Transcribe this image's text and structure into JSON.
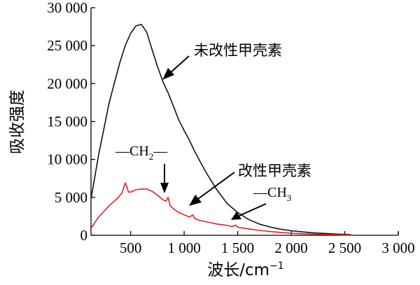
{
  "chart_data": {
    "type": "line",
    "xlabel": "波长/cm",
    "xlabel_sup": "−1",
    "ylabel": "吸收强度",
    "xlim": [
      130,
      3000
    ],
    "ylim": [
      0,
      30000
    ],
    "x_ticks": [
      500,
      1000,
      1500,
      2000,
      2500,
      3000
    ],
    "x_tick_labels": [
      "500",
      "1 000",
      "1 500",
      "2 000",
      "2 500",
      "3 000"
    ],
    "y_ticks": [
      0,
      5000,
      10000,
      15000,
      20000,
      25000,
      30000
    ],
    "y_tick_labels": [
      "0",
      "5 000",
      "10 000",
      "15 000",
      "20 000",
      "25 000",
      "30 000"
    ],
    "grid": false,
    "series": [
      {
        "name": "未改性甲壳素",
        "color": "#111111",
        "x": [
          130,
          200,
          300,
          400,
          450,
          500,
          550,
          600,
          650,
          700,
          750,
          800,
          850,
          900,
          950,
          1000,
          1050,
          1100,
          1150,
          1200,
          1300,
          1400,
          1500,
          1600,
          1700,
          1800,
          1900,
          2000,
          2100,
          2200,
          2300,
          2400,
          2500,
          2560
        ],
        "y": [
          4800,
          10500,
          17500,
          22800,
          25000,
          26600,
          27600,
          27800,
          26800,
          24500,
          22300,
          20300,
          18800,
          17000,
          15200,
          13800,
          12500,
          11000,
          9700,
          8400,
          6100,
          4200,
          3000,
          2100,
          1500,
          1100,
          800,
          600,
          450,
          330,
          250,
          180,
          120,
          80
        ]
      },
      {
        "name": "改性甲壳素",
        "color": "#e02020",
        "x": [
          130,
          200,
          300,
          380,
          420,
          450,
          465,
          480,
          500,
          550,
          600,
          650,
          700,
          750,
          800,
          830,
          850,
          870,
          900,
          950,
          1000,
          1050,
          1080,
          1100,
          1150,
          1200,
          1250,
          1300,
          1350,
          1400,
          1450,
          1480,
          1500,
          1550,
          1600,
          1700,
          1800,
          1900,
          2000,
          2100,
          2200,
          2300,
          2400,
          2500,
          2560
        ],
        "y": [
          900,
          2400,
          3900,
          4900,
          5600,
          6900,
          6400,
          5700,
          5700,
          6000,
          6100,
          6100,
          5800,
          5300,
          4700,
          4500,
          5000,
          3900,
          3500,
          3000,
          2700,
          2400,
          2700,
          2200,
          1950,
          1800,
          1650,
          1500,
          1400,
          1300,
          1150,
          1350,
          1050,
          950,
          850,
          650,
          500,
          380,
          280,
          200,
          150,
          110,
          80,
          60,
          40
        ]
      }
    ],
    "annotations": [
      {
        "id": "unmod",
        "text": "未改性甲壳素"
      },
      {
        "id": "mod",
        "text": "改性甲壳素"
      },
      {
        "id": "ch2",
        "prefix": "—CH",
        "sub": "2",
        "suffix": "—"
      },
      {
        "id": "ch3",
        "prefix": "—CH",
        "sub": "3"
      }
    ]
  }
}
